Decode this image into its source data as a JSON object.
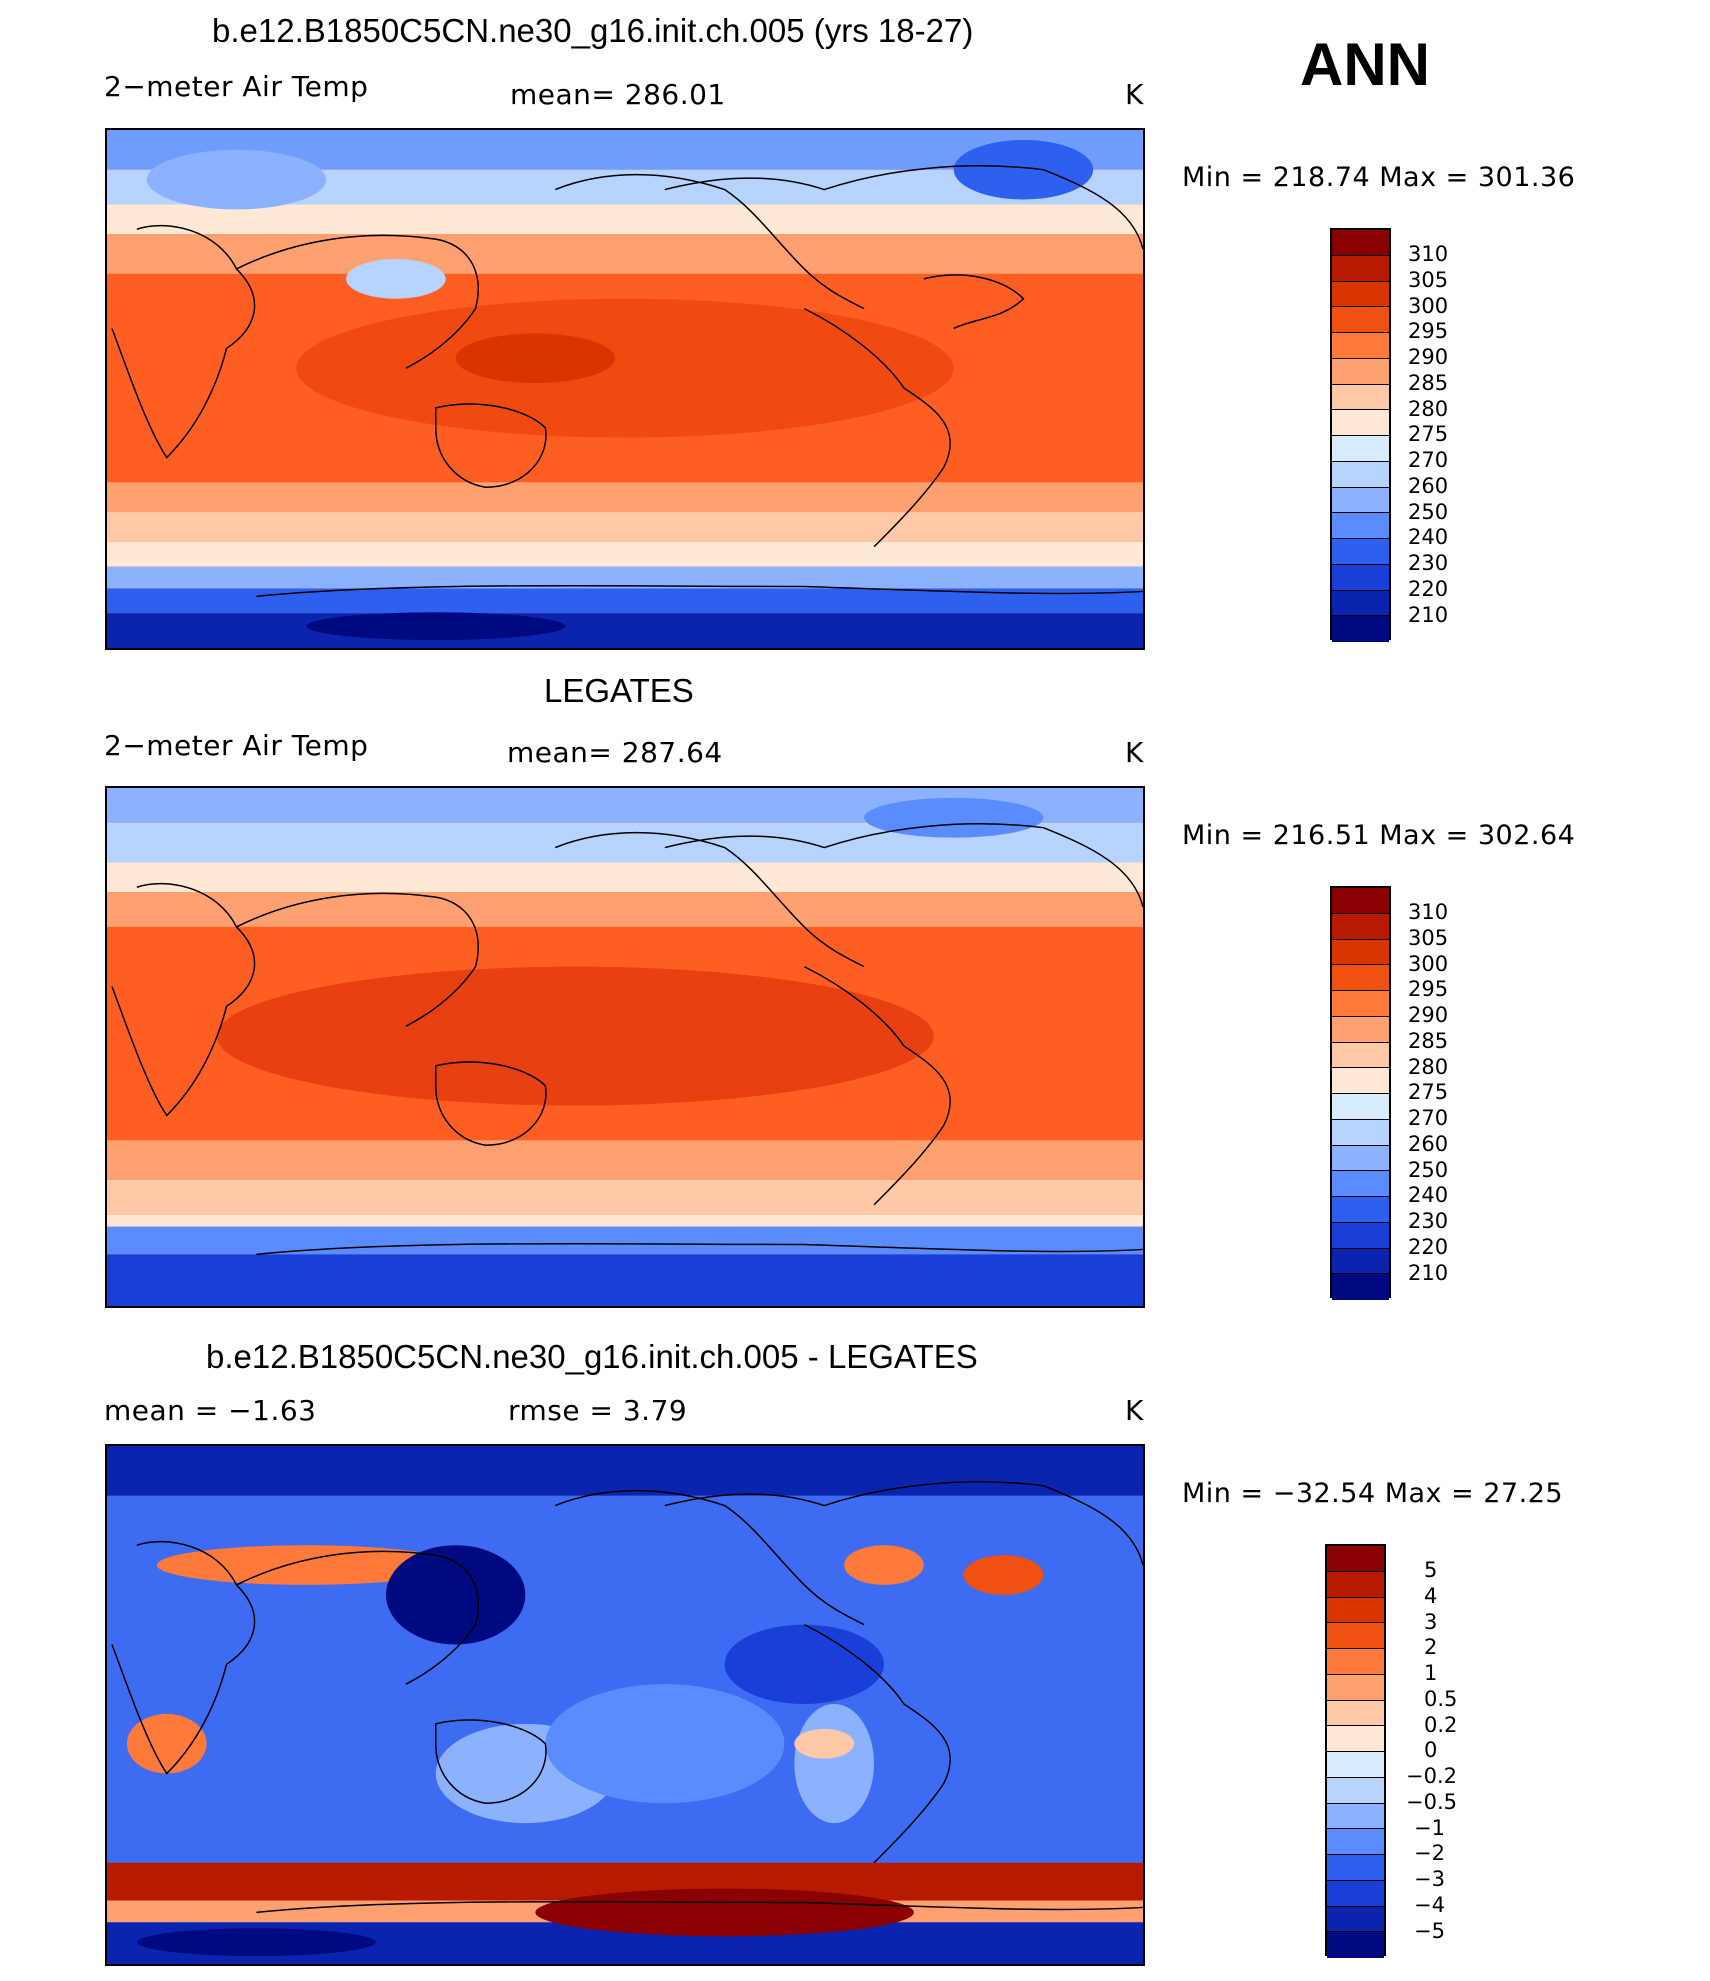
{
  "season": "ANN",
  "panels": [
    {
      "title": "b.e12.B1850C5CN.ne30_g16.init.ch.005 (yrs 18-27)",
      "left_label": "2−meter Air Temp",
      "center_label": "mean=  286.01",
      "units": "K",
      "minmax": "Min  =  218.74  Max  =  301.36",
      "colorbar_labels": [
        "310",
        "305",
        "300",
        "295",
        "290",
        "285",
        "280",
        "275",
        "270",
        "260",
        "250",
        "240",
        "230",
        "220",
        "210"
      ]
    },
    {
      "title": "LEGATES",
      "left_label": "2−meter Air Temp",
      "center_label": "mean=  287.64",
      "units": "K",
      "minmax": "Min  =  216.51  Max  =  302.64",
      "colorbar_labels": [
        "310",
        "305",
        "300",
        "295",
        "290",
        "285",
        "280",
        "275",
        "270",
        "260",
        "250",
        "240",
        "230",
        "220",
        "210"
      ]
    },
    {
      "title": "b.e12.B1850C5CN.ne30_g16.init.ch.005 - LEGATES",
      "left_label": "mean  =    −1.63",
      "center_label": "rmse  =      3.79",
      "units": "K",
      "minmax": "Min  =  −32.54  Max  =    27.25",
      "colorbar_labels": [
        "5",
        "4",
        "3",
        "2",
        "1",
        "0.5",
        "0.2",
        "0",
        "−0.2",
        "−0.5",
        "−1",
        "−2",
        "−3",
        "−4",
        "−5"
      ]
    }
  ],
  "colors": {
    "abs_scale": [
      "#8b0000",
      "#b81a00",
      "#d93500",
      "#f05010",
      "#ff7a3a",
      "#ffa070",
      "#ffc8a6",
      "#ffe9d6",
      "#d8ecff",
      "#b6d4ff",
      "#8cb2ff",
      "#5a8cff",
      "#2e60f0",
      "#1a3ed8",
      "#0a24b0",
      "#000a80"
    ],
    "diff_scale": [
      "#8b0000",
      "#b81a00",
      "#d93500",
      "#f05010",
      "#ff7a3a",
      "#ffa070",
      "#ffc8a6",
      "#ffe9d6",
      "#d8ecff",
      "#b6d4ff",
      "#8cb2ff",
      "#5a8cff",
      "#2e60f0",
      "#1a3ed8",
      "#0a24b0",
      "#000a80"
    ]
  }
}
